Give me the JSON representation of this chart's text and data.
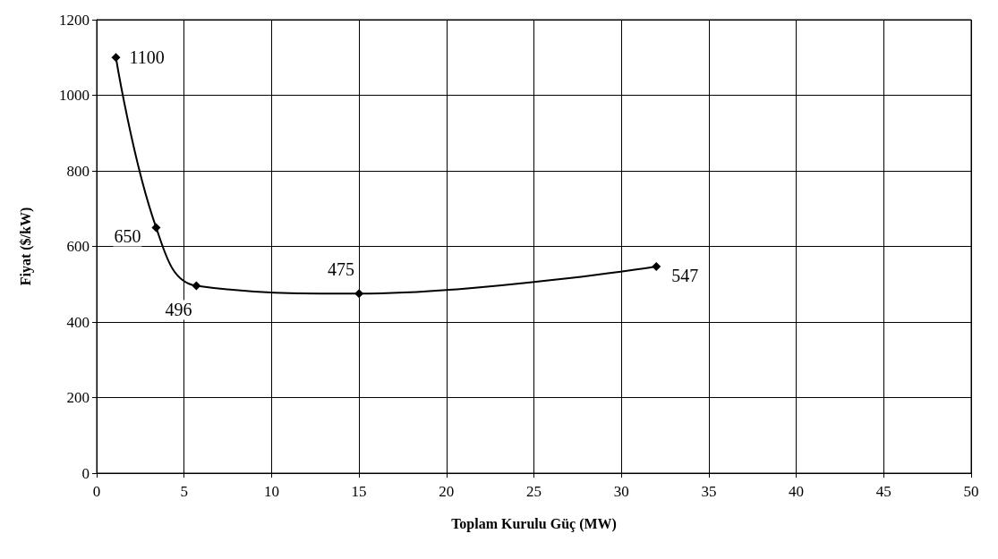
{
  "chart_data": {
    "type": "line",
    "xlabel": "Toplam Kurulu Güç (MW)",
    "ylabel": "Fiyat ($/kW)",
    "x": [
      1.1,
      3.4,
      5.7,
      15,
      32
    ],
    "series": [
      {
        "color": "#000000",
        "values": [
          1100,
          650,
          496,
          475,
          547
        ]
      }
    ],
    "data_labels": true,
    "marker": "diamond",
    "line_style": "solid",
    "grid": true,
    "xlim": [
      0,
      50
    ],
    "xticks": [
      0,
      5,
      10,
      15,
      20,
      25,
      30,
      35,
      40,
      45,
      50
    ],
    "ylim": [
      0,
      1200
    ],
    "yticks": [
      0,
      200,
      400,
      600,
      800,
      1000,
      1200
    ]
  }
}
